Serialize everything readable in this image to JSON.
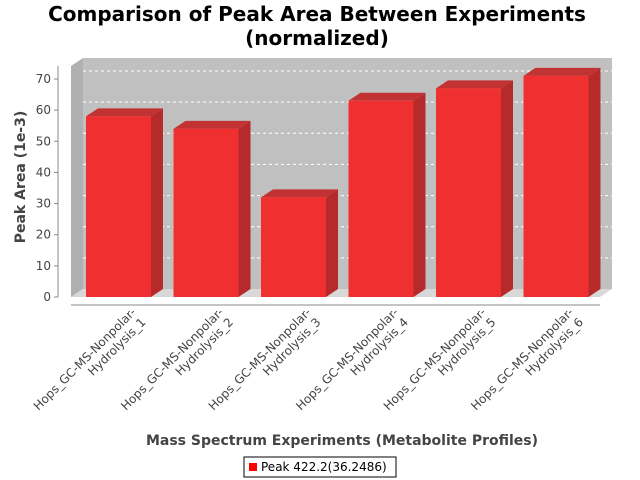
{
  "chart_data": {
    "type": "bar",
    "title_lines": [
      "Comparison of Peak Area Between Experiments",
      "(normalized)"
    ],
    "xlabel": "Mass Spectrum Experiments (Metabolite Profiles)",
    "ylabel": "Peak Area (1e-3)",
    "ylim": [
      0,
      75
    ],
    "yticks": [
      0,
      10,
      20,
      30,
      40,
      50,
      60,
      70
    ],
    "categories": [
      [
        "Hops_GC-MS-Nonpolar-",
        "Hydrolysis_1"
      ],
      [
        "Hops_GC-MS-Nonpolar-",
        "Hydrolysis_2"
      ],
      [
        "Hops_GC-MS-Nonpolar-",
        "Hydrolysis_3"
      ],
      [
        "Hops_GC-MS-Nonpolar-",
        "Hydrolysis_4"
      ],
      [
        "Hops_GC-MS-Nonpolar-",
        "Hydrolysis_5"
      ],
      [
        "Hops_GC-MS-Nonpolar-",
        "Hydrolysis_6"
      ]
    ],
    "series": [
      {
        "name": "Peak 422.2(36.2486)",
        "color": "#ff0000",
        "values": [
          58,
          54,
          32,
          63,
          67,
          71
        ]
      }
    ],
    "grid": true,
    "legend_position": "bottom-center",
    "plot_background": "#c0c0c0"
  }
}
